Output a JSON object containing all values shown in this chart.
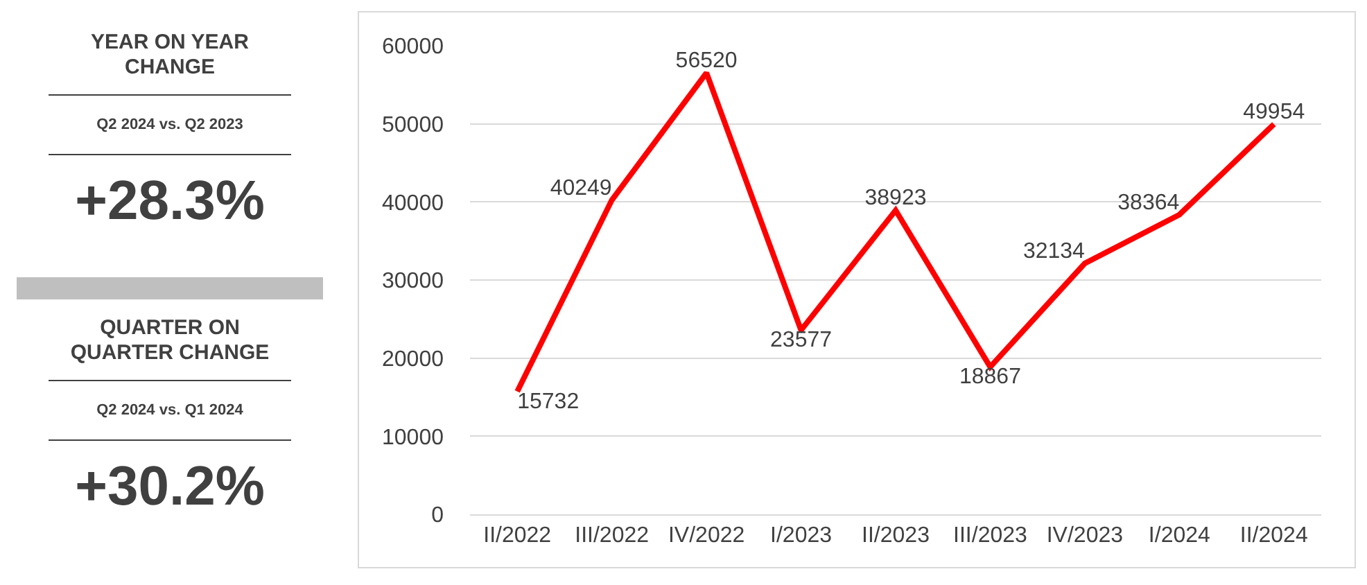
{
  "chart_data": [
    {
      "type": "other",
      "annotations": [
        "YEAR ON YEAR CHANGE",
        "Q2 2024 vs. Q2 2023",
        "+28.3%",
        "QUARTER ON QUARTER CHANGE",
        "Q2 2024 vs. Q1 2024",
        "+30.2%"
      ]
    },
    {
      "type": "line",
      "categories": [
        "II/2022",
        "III/2022",
        "IV/2022",
        "I/2023",
        "II/2023",
        "III/2023",
        "IV/2023",
        "I/2024",
        "II/2024"
      ],
      "series": [
        {
          "color": "#ff0000",
          "values": [
            15732,
            40249,
            56520,
            23577,
            38923,
            18867,
            32134,
            38364,
            49954
          ]
        }
      ],
      "ylim": [
        0,
        60000
      ],
      "yticks": [
        0,
        10000,
        20000,
        30000,
        40000,
        50000,
        60000
      ],
      "grid": "y",
      "data_labels": true
    }
  ]
}
